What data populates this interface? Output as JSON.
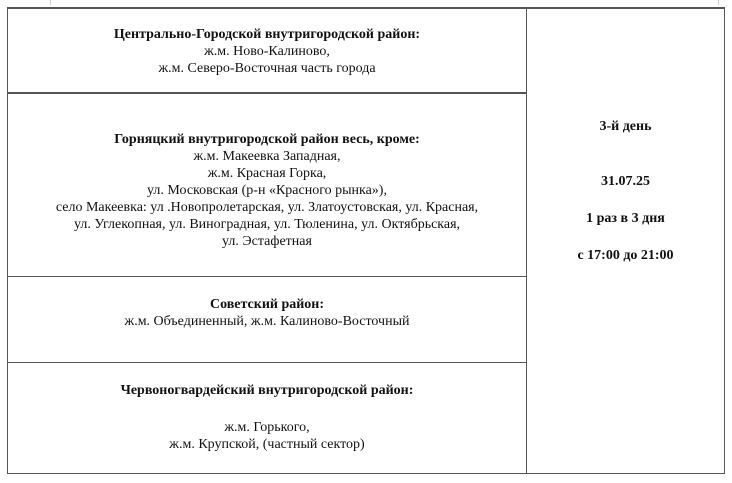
{
  "rows": [
    {
      "title": "Центрально-Городской внутригородской район:",
      "lines": [
        "ж.м. Ново-Калиново,",
        "ж.м. Северо-Восточная часть города"
      ]
    },
    {
      "title": "Горняцкий внутригородской район  весь, кроме:",
      "lines": [
        "ж.м. Макеевка Западная,",
        "ж.м. Красная Горка,",
        "ул. Московская (р-н «Красного рынка»),",
        "село Макеевка: ул .Новопролетарская, ул. Златоустовская, ул. Красная,",
        "ул. Углекопная, ул. Виноградная, ул. Тюленина, ул. Октябрьская,",
        "ул. Эстафетная"
      ]
    },
    {
      "title": "Советский район:",
      "lines": [
        "ж.м. Объединенный, ж.м. Калиново-Восточный"
      ]
    },
    {
      "title": "Червоногвардейский внутригородской район:",
      "lines": [
        "ж.м. Горького,",
        "ж.м. Крупской, (частный сектор)"
      ]
    }
  ],
  "schedule": {
    "day": "3-й день",
    "date": "31.07.25",
    "frequency": "1 раз в 3 дня",
    "time": "с 17:00 до 21:00"
  }
}
